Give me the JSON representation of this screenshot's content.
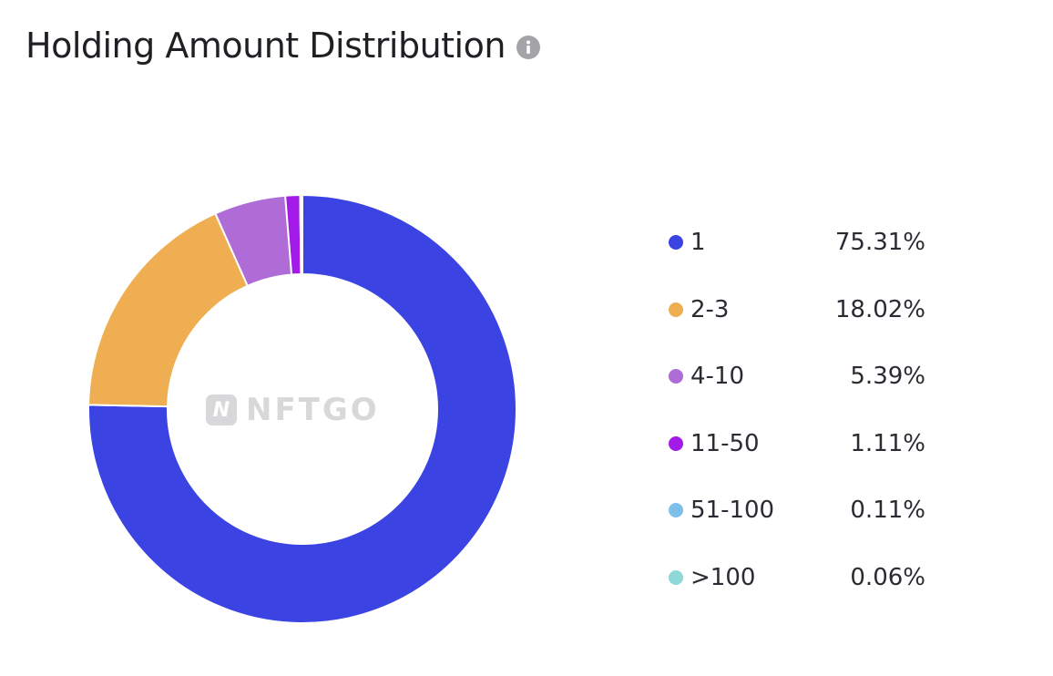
{
  "header": {
    "title": "Holding Amount Distribution",
    "info_icon": "info-icon"
  },
  "watermark": {
    "logo_letter": "N",
    "text": "NFTGO"
  },
  "chart_data": {
    "type": "pie",
    "style": "donut",
    "title": "Holding Amount Distribution",
    "legend_placement": "right",
    "categories": [
      "1",
      "2-3",
      "4-10",
      "11-50",
      "51-100",
      ">100"
    ],
    "values": [
      75.31,
      18.02,
      5.39,
      1.11,
      0.11,
      0.06
    ],
    "value_labels": [
      "75.31%",
      "18.02%",
      "5.39%",
      "1.11%",
      "0.11%",
      "0.06%"
    ],
    "colors": [
      "#3B44E3",
      "#EFAE51",
      "#B06CD6",
      "#A21BE8",
      "#7DBFE8",
      "#8ED8D8"
    ]
  }
}
